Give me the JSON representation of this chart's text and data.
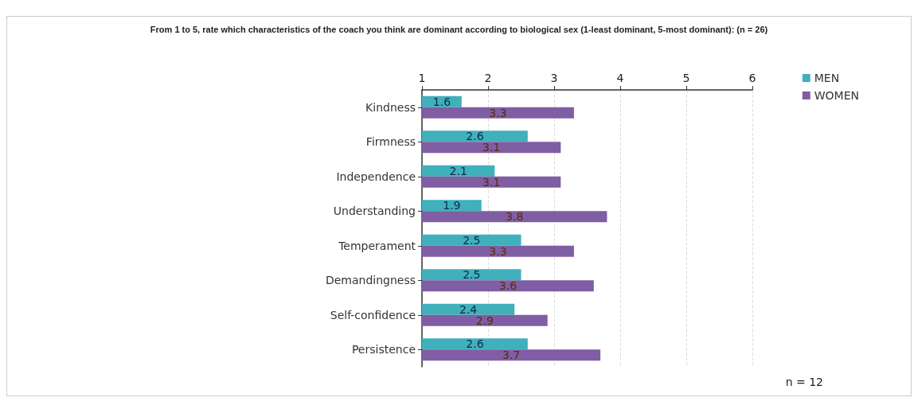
{
  "chart_data": {
    "type": "bar",
    "orientation": "horizontal",
    "title": "From 1 to 5, rate which characteristics of the coach you think are dominant according to biological sex (1-least dominant, 5-most dominant): (n = 26)",
    "categories": [
      "Kindness",
      "Firmness",
      "Independence",
      "Understanding",
      "Temperament",
      "Demandingness",
      "Self-confidence",
      "Persistence"
    ],
    "series": [
      {
        "name": "MEN",
        "color": "#40b0bb",
        "values": [
          1.6,
          2.6,
          2.1,
          1.9,
          2.5,
          2.5,
          2.4,
          2.6
        ]
      },
      {
        "name": "WOMEN",
        "color": "#7f5ea3",
        "values": [
          3.3,
          3.1,
          3.1,
          3.8,
          3.3,
          3.6,
          2.9,
          3.7
        ]
      }
    ],
    "xlim": [
      1,
      6
    ],
    "xticks": [
      1,
      2,
      3,
      4,
      5,
      6
    ],
    "grid": "x",
    "legend": "top right",
    "data_labels": true,
    "annotations": [
      "n = 12"
    ]
  }
}
